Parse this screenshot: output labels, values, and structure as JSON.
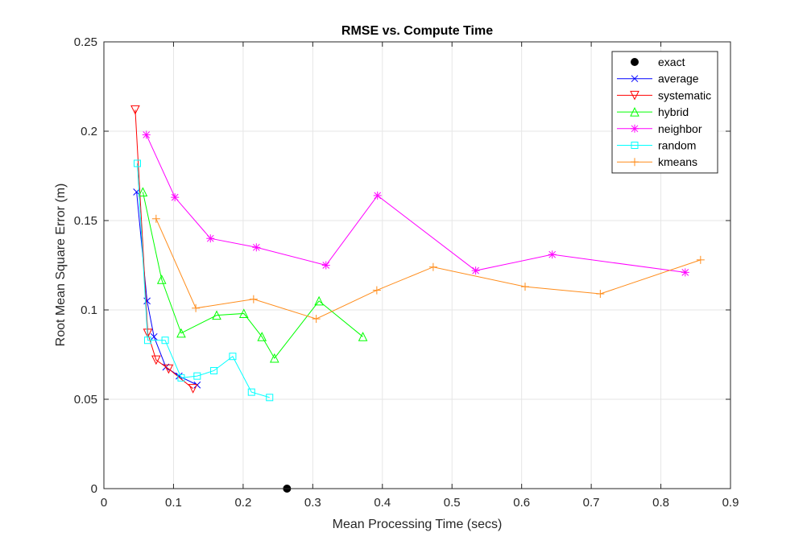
{
  "chart_data": {
    "type": "line",
    "title": "RMSE vs. Compute Time",
    "xlabel": "Mean Processing Time (secs)",
    "ylabel": "Root Mean Square Error (m)",
    "xlim": [
      0,
      0.9
    ],
    "ylim": [
      0,
      0.25
    ],
    "xticks": [
      0,
      0.1,
      0.2,
      0.3,
      0.4,
      0.5,
      0.6,
      0.7,
      0.8,
      0.9
    ],
    "xtick_labels": [
      "0",
      "0.1",
      "0.2",
      "0.3",
      "0.4",
      "0.5",
      "0.6",
      "0.7",
      "0.8",
      "0.9"
    ],
    "yticks": [
      0,
      0.05,
      0.1,
      0.15,
      0.2,
      0.25
    ],
    "ytick_labels": [
      "0",
      "0.05",
      "0.1",
      "0.15",
      "0.2",
      "0.25"
    ],
    "grid": true,
    "legend_position": "top-right",
    "series": [
      {
        "name": "exact",
        "color": "#000000",
        "marker": "dot",
        "line": false,
        "x": [
          0.263
        ],
        "y": [
          0.0
        ]
      },
      {
        "name": "average",
        "color": "#0000ff",
        "marker": "x",
        "line": true,
        "x": [
          0.047,
          0.062,
          0.072,
          0.089,
          0.108,
          0.134
        ],
        "y": [
          0.166,
          0.105,
          0.085,
          0.068,
          0.063,
          0.058
        ]
      },
      {
        "name": "systematic",
        "color": "#ff0000",
        "marker": "triangle-down",
        "line": true,
        "x": [
          0.045,
          0.063,
          0.075,
          0.093,
          0.128
        ],
        "y": [
          0.212,
          0.087,
          0.072,
          0.067,
          0.056
        ]
      },
      {
        "name": "hybrid",
        "color": "#00ff00",
        "marker": "triangle-up",
        "line": true,
        "x": [
          0.056,
          0.083,
          0.111,
          0.162,
          0.201,
          0.227,
          0.245,
          0.309,
          0.372
        ],
        "y": [
          0.166,
          0.117,
          0.087,
          0.097,
          0.098,
          0.085,
          0.073,
          0.105,
          0.085
        ]
      },
      {
        "name": "neighbor",
        "color": "#ff00ff",
        "marker": "asterisk",
        "line": true,
        "x": [
          0.061,
          0.102,
          0.153,
          0.219,
          0.319,
          0.393,
          0.534,
          0.644,
          0.835
        ],
        "y": [
          0.198,
          0.163,
          0.14,
          0.135,
          0.125,
          0.164,
          0.122,
          0.131,
          0.121
        ]
      },
      {
        "name": "random",
        "color": "#00ffff",
        "marker": "square",
        "line": true,
        "x": [
          0.048,
          0.063,
          0.088,
          0.111,
          0.134,
          0.158,
          0.185,
          0.212,
          0.238
        ],
        "y": [
          0.182,
          0.083,
          0.083,
          0.062,
          0.063,
          0.066,
          0.074,
          0.054,
          0.051
        ]
      },
      {
        "name": "kmeans",
        "color": "#ff8c1a",
        "marker": "plus",
        "line": true,
        "x": [
          0.075,
          0.132,
          0.215,
          0.305,
          0.392,
          0.473,
          0.605,
          0.713,
          0.857
        ],
        "y": [
          0.151,
          0.101,
          0.106,
          0.095,
          0.111,
          0.124,
          0.113,
          0.109,
          0.128
        ]
      }
    ]
  }
}
